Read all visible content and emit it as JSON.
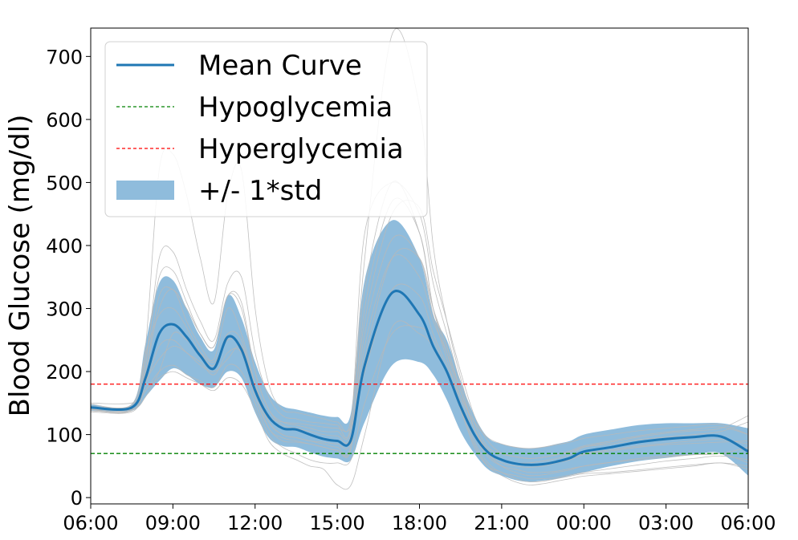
{
  "chart_data": {
    "type": "line",
    "title": "",
    "xlabel": "",
    "ylabel": "Blood Glucose (mg/dl)",
    "x_tick_labels": [
      "06:00",
      "09:00",
      "12:00",
      "15:00",
      "18:00",
      "21:00",
      "00:00",
      "03:00",
      "06:00"
    ],
    "y_ticks": [
      0,
      100,
      200,
      300,
      400,
      500,
      600,
      700
    ],
    "xlim_hours": [
      0,
      24
    ],
    "ylim": [
      -10,
      745
    ],
    "grid": false,
    "legend_position": "top-left",
    "legend": {
      "mean": "Mean Curve",
      "hypo": "Hypoglycemia",
      "hyper": "Hyperglycemia",
      "band": "+/- 1*std"
    },
    "colors": {
      "mean": "#1f77b4",
      "band": "#8fbcdc",
      "hypo": "#008000",
      "hyper": "#ff0000",
      "individual": "#b8b8b8"
    },
    "thresholds": {
      "hypoglycemia": 70,
      "hyperglycemia": 180
    },
    "x_hours": [
      0,
      1.5,
      2.0,
      2.5,
      3.0,
      3.5,
      4.0,
      4.5,
      5.0,
      5.5,
      6.0,
      6.5,
      7.0,
      7.5,
      8.0,
      8.5,
      9.0,
      9.5,
      10.0,
      11.0,
      12.0,
      12.5,
      13.0,
      13.5,
      14.0,
      14.5,
      15.0,
      15.5,
      16.0,
      16.5,
      17.0,
      17.5,
      18.0,
      19.0,
      20.0,
      21.0,
      22.0,
      23.0,
      24.0
    ],
    "mean": [
      143,
      143,
      190,
      260,
      275,
      255,
      225,
      205,
      255,
      235,
      170,
      128,
      110,
      108,
      100,
      93,
      90,
      92,
      210,
      325,
      290,
      240,
      200,
      145,
      100,
      72,
      60,
      54,
      52,
      53,
      57,
      63,
      73,
      80,
      88,
      93,
      96,
      97,
      73
    ],
    "std_upper": [
      148,
      148,
      245,
      340,
      345,
      300,
      255,
      235,
      320,
      285,
      215,
      165,
      145,
      140,
      135,
      130,
      128,
      135,
      345,
      440,
      380,
      290,
      250,
      185,
      130,
      95,
      85,
      80,
      78,
      80,
      85,
      90,
      100,
      108,
      115,
      118,
      118,
      118,
      110
    ],
    "std_lower": [
      138,
      138,
      160,
      185,
      205,
      195,
      180,
      175,
      200,
      190,
      135,
      95,
      82,
      80,
      72,
      65,
      62,
      60,
      120,
      210,
      215,
      195,
      155,
      105,
      70,
      45,
      35,
      28,
      25,
      27,
      30,
      35,
      40,
      50,
      58,
      63,
      68,
      70,
      35
    ],
    "individual_curves": [
      [
        140,
        140,
        220,
        350,
        360,
        310,
        260,
        240,
        320,
        300,
        200,
        140,
        120,
        115,
        110,
        105,
        105,
        110,
        330,
        500,
        420,
        300,
        240,
        170,
        110,
        75,
        60,
        55,
        55,
        58,
        62,
        68,
        80,
        85,
        92,
        96,
        100,
        105,
        120
      ],
      [
        145,
        145,
        240,
        520,
        545,
        480,
        380,
        310,
        480,
        520,
        300,
        180,
        140,
        135,
        130,
        125,
        120,
        125,
        380,
        735,
        620,
        400,
        280,
        190,
        120,
        80,
        70,
        65,
        62,
        64,
        68,
        72,
        80,
        88,
        96,
        102,
        106,
        110,
        130
      ],
      [
        140,
        140,
        200,
        300,
        330,
        280,
        240,
        220,
        300,
        260,
        180,
        120,
        100,
        95,
        90,
        85,
        80,
        85,
        300,
        470,
        420,
        300,
        230,
        160,
        100,
        65,
        50,
        45,
        40,
        40,
        42,
        46,
        50,
        56,
        62,
        66,
        68,
        70,
        80
      ],
      [
        138,
        138,
        180,
        240,
        250,
        230,
        215,
        195,
        230,
        230,
        160,
        110,
        90,
        88,
        85,
        80,
        75,
        78,
        260,
        410,
        380,
        290,
        220,
        150,
        90,
        55,
        40,
        35,
        30,
        30,
        32,
        36,
        40,
        46,
        52,
        58,
        62,
        66,
        60
      ],
      [
        150,
        150,
        170,
        200,
        210,
        195,
        185,
        175,
        210,
        200,
        150,
        100,
        80,
        70,
        60,
        55,
        55,
        60,
        150,
        260,
        270,
        250,
        200,
        140,
        85,
        50,
        35,
        25,
        20,
        22,
        26,
        30,
        34,
        38,
        42,
        46,
        50,
        55,
        45
      ],
      [
        142,
        142,
        210,
        380,
        390,
        330,
        280,
        250,
        340,
        350,
        230,
        160,
        130,
        125,
        120,
        118,
        115,
        118,
        420,
        500,
        450,
        340,
        260,
        180,
        110,
        70,
        55,
        50,
        48,
        50,
        55,
        60,
        68,
        74,
        80,
        84,
        86,
        88,
        90
      ],
      [
        145,
        145,
        185,
        220,
        240,
        230,
        210,
        200,
        220,
        240,
        180,
        130,
        120,
        118,
        115,
        112,
        110,
        112,
        200,
        330,
        320,
        260,
        210,
        160,
        120,
        95,
        85,
        80,
        78,
        80,
        84,
        88,
        94,
        100,
        106,
        110,
        114,
        116,
        100
      ],
      [
        148,
        148,
        230,
        290,
        300,
        270,
        230,
        210,
        260,
        250,
        170,
        110,
        95,
        90,
        85,
        80,
        75,
        78,
        240,
        380,
        350,
        280,
        230,
        170,
        110,
        70,
        50,
        40,
        35,
        36,
        40,
        44,
        50,
        56,
        60,
        64,
        68,
        70,
        55
      ],
      [
        136,
        136,
        170,
        190,
        200,
        190,
        180,
        170,
        190,
        180,
        140,
        90,
        70,
        60,
        50,
        45,
        20,
        20,
        100,
        270,
        260,
        240,
        200,
        140,
        80,
        50,
        40,
        30,
        25,
        26,
        30,
        34,
        38,
        40,
        44,
        48,
        52,
        55,
        50
      ],
      [
        144,
        144,
        200,
        320,
        330,
        300,
        260,
        240,
        320,
        310,
        200,
        140,
        115,
        110,
        105,
        100,
        98,
        100,
        280,
        450,
        460,
        360,
        280,
        200,
        130,
        90,
        70,
        65,
        62,
        64,
        68,
        74,
        82,
        90,
        98,
        104,
        108,
        112,
        100
      ],
      [
        140,
        140,
        160,
        200,
        260,
        250,
        230,
        215,
        250,
        240,
        170,
        120,
        100,
        95,
        90,
        88,
        85,
        88,
        220,
        380,
        380,
        300,
        240,
        170,
        110,
        75,
        60,
        55,
        52,
        54,
        58,
        62,
        70,
        76,
        82,
        86,
        90,
        92,
        85
      ]
    ]
  }
}
